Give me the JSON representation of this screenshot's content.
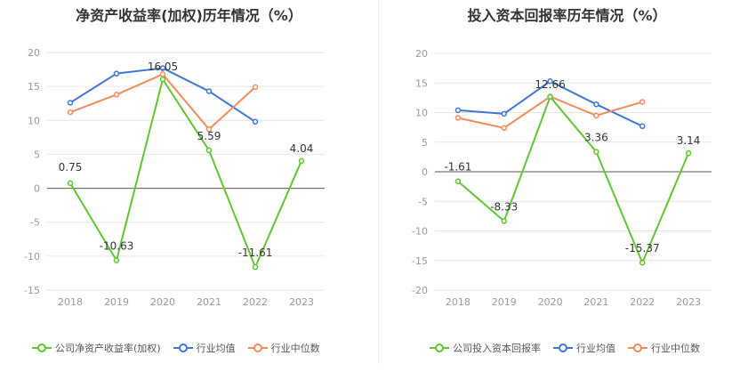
{
  "chart_data": [
    {
      "type": "line",
      "title": "净资产收益率(加权)历年情况（%）",
      "categories": [
        "2018",
        "2019",
        "2020",
        "2021",
        "2022",
        "2023"
      ],
      "ylim": [
        -15,
        20
      ],
      "yticks": [
        -15,
        -10,
        -5,
        0,
        5,
        10,
        15,
        20
      ],
      "grid": true,
      "legend_position": "bottom",
      "series": [
        {
          "name": "公司净资产收益率(加权)",
          "color": "#5fc62f",
          "values": [
            0.75,
            -10.63,
            16.05,
            5.59,
            -11.61,
            4.04
          ],
          "labels": [
            "0.75",
            "-10.63",
            "16.05",
            "5.59",
            "-11.61",
            "4.04"
          ]
        },
        {
          "name": "行业均值",
          "color": "#3e75d6",
          "values": [
            12.6,
            16.9,
            17.7,
            14.3,
            9.8,
            null
          ]
        },
        {
          "name": "行业中位数",
          "color": "#f08b5c",
          "values": [
            11.2,
            13.8,
            16.8,
            8.7,
            14.9,
            null
          ]
        }
      ]
    },
    {
      "type": "line",
      "title": "投入资本回报率历年情况（%）",
      "categories": [
        "2018",
        "2019",
        "2020",
        "2021",
        "2022",
        "2023"
      ],
      "ylim": [
        -20,
        20
      ],
      "yticks": [
        -20,
        -15,
        -10,
        -5,
        0,
        5,
        10,
        15,
        20
      ],
      "grid": true,
      "legend_position": "bottom",
      "series": [
        {
          "name": "公司投入资本回报率",
          "color": "#5fc62f",
          "values": [
            -1.61,
            -8.33,
            12.66,
            3.36,
            -15.37,
            3.14
          ],
          "labels": [
            "-1.61",
            "-8.33",
            "12.66",
            "3.36",
            "-15.37",
            "3.14"
          ]
        },
        {
          "name": "行业均值",
          "color": "#3e75d6",
          "values": [
            10.4,
            9.8,
            15.3,
            11.4,
            7.7,
            null
          ]
        },
        {
          "name": "行业中位数",
          "color": "#f08b5c",
          "values": [
            9.1,
            7.4,
            12.7,
            9.5,
            11.8,
            null
          ]
        }
      ]
    }
  ]
}
